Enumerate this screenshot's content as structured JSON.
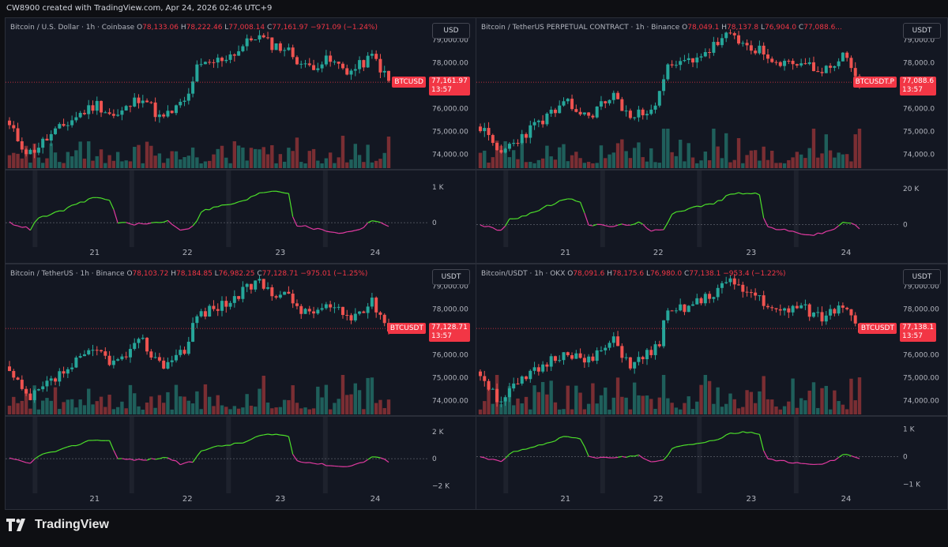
{
  "header": {
    "text": "CW8900 created with TradingView.com, Apr 24, 2026 02:46 UTC+9"
  },
  "brand": {
    "name": "TradingView"
  },
  "colors": {
    "up": "#26a69a",
    "down": "#ef5350",
    "volume_up": "#1f5f5b",
    "volume_down": "#7a2e33",
    "osc_pos": "#4cdf2a",
    "osc_neg": "#e03aa0",
    "bg": "#131722"
  },
  "chart_data": [
    {
      "type": "candlestick",
      "title": "Bitcoin / U.S. Dollar · 1h · Coinbase",
      "ohlc": {
        "o": "78,133.06",
        "h": "78,222.46",
        "l": "77,008.14",
        "c": "77,161.97",
        "chg": "−971.09 (−1.24%)"
      },
      "currency": "USD",
      "symbol": "BTCUSD",
      "last_price": "77,161.97",
      "countdown": "13:57",
      "price_ticks": [
        "79,000.00",
        "78,000.00",
        "76,000.00",
        "75,000.00",
        "74,000.00"
      ],
      "price_range": [
        73400,
        79600
      ],
      "osc_ticks": [
        "1 K",
        "0"
      ],
      "osc_range": [
        -550,
        1350
      ],
      "x_ticks": [
        "21",
        "22",
        "23",
        "24"
      ],
      "osc_scale": 1000,
      "seed": 11
    },
    {
      "type": "candlestick",
      "title": "Bitcoin / TetherUS PERPETUAL CONTRACT · 1h · Binance",
      "ohlc": {
        "o": "78,049.1",
        "h": "78,137.8",
        "l": "76,904.0",
        "c": "77,088.6..."
      },
      "currency": "USDT",
      "symbol": "BTCUSDT.P",
      "last_price": "77,088.6",
      "countdown": "13:57",
      "price_ticks": [
        "79,000.0",
        "78,000.0",
        "76,000.0",
        "75,000.0",
        "74,000.0"
      ],
      "price_range": [
        73400,
        79600
      ],
      "osc_ticks": [
        "20 K",
        "0"
      ],
      "osc_range": [
        -10000,
        28000
      ],
      "x_ticks": [
        "21",
        "22",
        "23",
        "24"
      ],
      "osc_scale": 20000,
      "seed": 23
    },
    {
      "type": "candlestick",
      "title": "Bitcoin / TetherUS · 1h · Binance",
      "ohlc": {
        "o": "78,103.72",
        "h": "78,184.85",
        "l": "76,982.25",
        "c": "77,128.71",
        "chg": "−975.01 (−1.25%)"
      },
      "currency": "USDT",
      "symbol": "BTCUSDT",
      "last_price": "77,128.71",
      "countdown": "13:57",
      "price_ticks": [
        "79,000.00",
        "78,000.00",
        "76,000.00",
        "75,000.00",
        "74,000.00"
      ],
      "price_range": [
        73400,
        79600
      ],
      "osc_ticks": [
        "2 K",
        "0",
        "−2 K"
      ],
      "osc_range": [
        -2200,
        2800
      ],
      "x_ticks": [
        "21",
        "22",
        "23",
        "24"
      ],
      "osc_scale": 2000,
      "seed": 37
    },
    {
      "type": "candlestick",
      "title": "Bitcoin/USDT · 1h · OKX",
      "ohlc": {
        "o": "78,091.6",
        "h": "78,175.6",
        "l": "76,980.0",
        "c": "77,138.1",
        "chg": "−953.4 (−1.22%)"
      },
      "currency": "USDT",
      "symbol": "BTCUSDT",
      "last_price": "77,138.1",
      "countdown": "13:57",
      "price_ticks": [
        "79,000.00",
        "78,000.00",
        "76,000.00",
        "75,000.00",
        "74,000.00"
      ],
      "price_range": [
        73400,
        79600
      ],
      "osc_ticks": [
        "1 K",
        "0",
        "−1 K"
      ],
      "osc_range": [
        -1150,
        1300
      ],
      "x_ticks": [
        "21",
        "22",
        "23",
        "24"
      ],
      "osc_scale": 1000,
      "seed": 51
    }
  ]
}
